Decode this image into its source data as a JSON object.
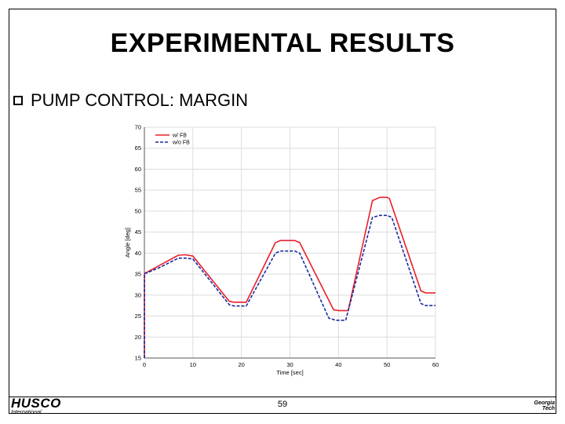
{
  "slide": {
    "title": "EXPERIMENTAL RESULTS",
    "bullet": "PUMP CONTROL: MARGIN",
    "page_number": "59"
  },
  "logos": {
    "left_main": "HUSCO",
    "left_sub": "International",
    "right_line1": "Georgia",
    "right_line2": "Tech"
  },
  "chart_data": {
    "type": "line",
    "xlabel": "Time [sec]",
    "ylabel": "Angle [deg]",
    "xlim": [
      0,
      60
    ],
    "ylim": [
      15,
      70
    ],
    "xticks": [
      0,
      10,
      20,
      30,
      40,
      50,
      60
    ],
    "yticks": [
      15,
      20,
      25,
      30,
      35,
      40,
      45,
      50,
      55,
      60,
      65,
      70
    ],
    "grid": true,
    "legend_position": "top-left",
    "series": [
      {
        "name": "w/ FB",
        "color": "#e8202a",
        "dash": "solid",
        "x": [
          0,
          0.02,
          0.3,
          3,
          7,
          8.5,
          10,
          17.5,
          18.5,
          21,
          27,
          28,
          31,
          32,
          39,
          40,
          42,
          47,
          48.5,
          50,
          50.5,
          57,
          58,
          60
        ],
        "y": [
          15,
          35.2,
          35.3,
          37,
          39.5,
          39.6,
          39.3,
          28.5,
          28.3,
          28.3,
          42.5,
          43,
          43,
          42.5,
          26.5,
          26.3,
          26.3,
          52.5,
          53.3,
          53.3,
          53,
          31,
          30.5,
          30.5
        ]
      },
      {
        "name": "w/o FB",
        "color": "#1a2aa0",
        "dash": "dashed",
        "x": [
          0,
          0.02,
          0.3,
          3,
          7,
          8.5,
          10,
          17.5,
          18.5,
          21,
          27,
          28,
          31,
          32,
          38,
          39.5,
          41.5,
          47,
          48.5,
          50,
          51,
          57,
          58,
          60
        ],
        "y": [
          15,
          35.2,
          35.2,
          36.5,
          38.8,
          38.8,
          38.6,
          27.7,
          27.4,
          27.4,
          40,
          40.5,
          40.5,
          40,
          24.5,
          24,
          24,
          48.5,
          49,
          49,
          48.5,
          28,
          27.5,
          27.5
        ]
      }
    ]
  }
}
